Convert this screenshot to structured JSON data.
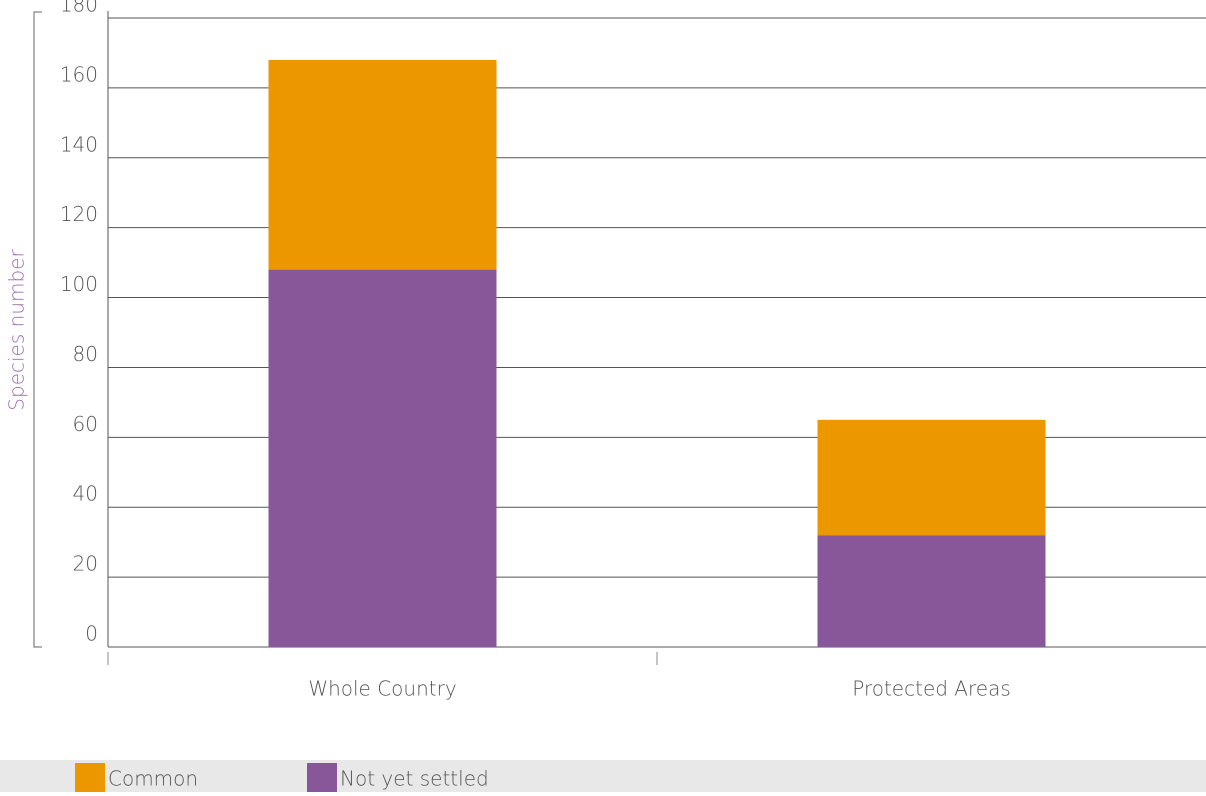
{
  "chart_data": {
    "type": "stacked_bar",
    "y_label": "Species number",
    "categories": [
      "Whole Country",
      "Protected Areas"
    ],
    "series": [
      {
        "name": "Not yet settled",
        "color": "#88579a",
        "values": [
          108,
          32
        ]
      },
      {
        "name": "Common",
        "color": "#ec9600",
        "values": [
          60,
          33
        ]
      }
    ],
    "ylim": [
      0,
      180
    ],
    "yticks": [
      0,
      20,
      40,
      60,
      80,
      100,
      120,
      140,
      160,
      180
    ],
    "grid": true,
    "legend": [
      "Common",
      "Not yet settled"
    ]
  }
}
